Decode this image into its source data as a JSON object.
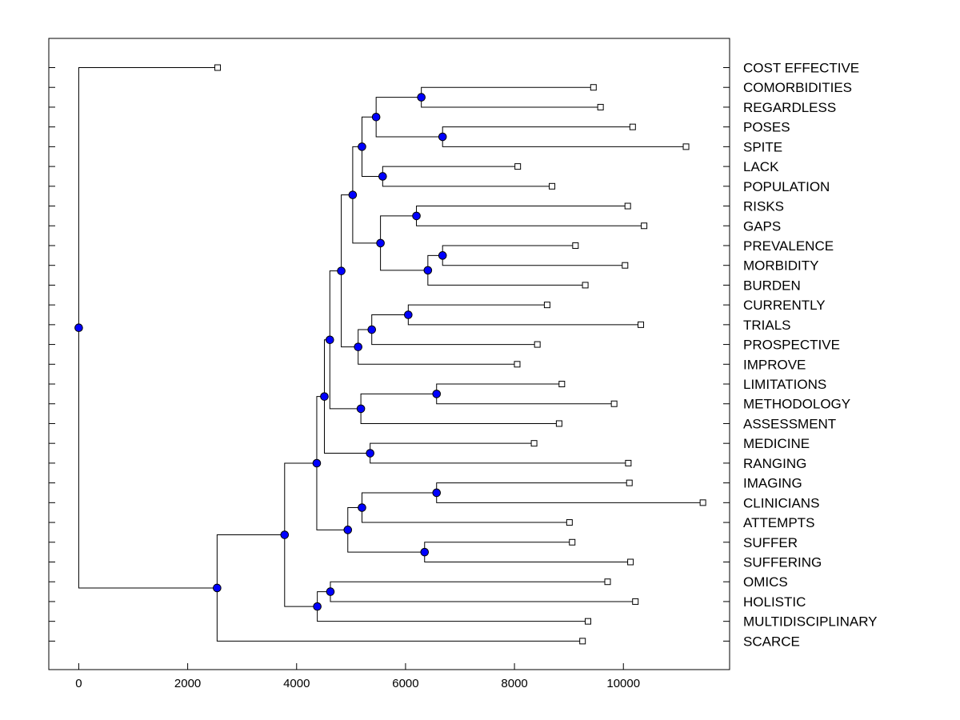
{
  "chart_data": {
    "type": "dendrogram",
    "title": "",
    "xlabel": "",
    "ylabel": "",
    "xlim": [
      -550,
      11950
    ],
    "x_ticks": [
      0,
      2000,
      4000,
      6000,
      8000,
      10000
    ],
    "grid": false,
    "node_color": "#0000ff",
    "leaves": [
      {
        "label": "COST EFFECTIVE",
        "value": 2550
      },
      {
        "label": "COMORBIDITIES",
        "value": 9450
      },
      {
        "label": "REGARDLESS",
        "value": 9580
      },
      {
        "label": "POSES",
        "value": 10170
      },
      {
        "label": "SPITE",
        "value": 11150
      },
      {
        "label": "LACK",
        "value": 8060
      },
      {
        "label": "POPULATION",
        "value": 8690
      },
      {
        "label": "RISKS",
        "value": 10080
      },
      {
        "label": "GAPS",
        "value": 10380
      },
      {
        "label": "PREVALENCE",
        "value": 9120
      },
      {
        "label": "MORBIDITY",
        "value": 10030
      },
      {
        "label": "BURDEN",
        "value": 9300
      },
      {
        "label": "CURRENTLY",
        "value": 8600
      },
      {
        "label": "TRIALS",
        "value": 10320
      },
      {
        "label": "PROSPECTIVE",
        "value": 8420
      },
      {
        "label": "IMPROVE",
        "value": 8050
      },
      {
        "label": "LIMITATIONS",
        "value": 8870
      },
      {
        "label": "METHODOLOGY",
        "value": 9830
      },
      {
        "label": "ASSESSMENT",
        "value": 8820
      },
      {
        "label": "MEDICINE",
        "value": 8360
      },
      {
        "label": "RANGING",
        "value": 10090
      },
      {
        "label": "IMAGING",
        "value": 10110
      },
      {
        "label": "CLINICIANS",
        "value": 11460
      },
      {
        "label": "ATTEMPTS",
        "value": 9010
      },
      {
        "label": "SUFFER",
        "value": 9060
      },
      {
        "label": "SUFFERING",
        "value": 10130
      },
      {
        "label": "OMICS",
        "value": 9710
      },
      {
        "label": "HOLISTIC",
        "value": 10220
      },
      {
        "label": "MULTIDISCIPLINARY",
        "value": 9350
      },
      {
        "label": "SCARCE",
        "value": 9250
      }
    ],
    "merges": [
      {
        "id": "n1",
        "value": 6290,
        "children": [
          1,
          2
        ]
      },
      {
        "id": "n2",
        "value": 6680,
        "children": [
          3,
          4
        ]
      },
      {
        "id": "n3",
        "value": 5460,
        "children": [
          "n1",
          "n2"
        ]
      },
      {
        "id": "n4",
        "value": 5580,
        "children": [
          5,
          6
        ]
      },
      {
        "id": "n5",
        "value": 5200,
        "children": [
          "n3",
          "n4"
        ]
      },
      {
        "id": "n6",
        "value": 6200,
        "children": [
          7,
          8
        ]
      },
      {
        "id": "n7",
        "value": 6680,
        "children": [
          9,
          10
        ]
      },
      {
        "id": "n8",
        "value": 6410,
        "children": [
          "n7",
          11
        ]
      },
      {
        "id": "n9",
        "value": 5540,
        "children": [
          "n6",
          "n8"
        ]
      },
      {
        "id": "n10",
        "value": 5030,
        "children": [
          "n5",
          "n9"
        ]
      },
      {
        "id": "n11",
        "value": 6050,
        "children": [
          12,
          13
        ]
      },
      {
        "id": "n12",
        "value": 5380,
        "children": [
          "n11",
          14
        ]
      },
      {
        "id": "n13",
        "value": 5130,
        "children": [
          "n12",
          15
        ]
      },
      {
        "id": "n14",
        "value": 4820,
        "children": [
          "n10",
          "n13"
        ]
      },
      {
        "id": "n15",
        "value": 6570,
        "children": [
          16,
          17
        ]
      },
      {
        "id": "n16",
        "value": 5180,
        "children": [
          "n15",
          18
        ]
      },
      {
        "id": "n17",
        "value": 4610,
        "children": [
          "n14",
          "n16"
        ]
      },
      {
        "id": "n18",
        "value": 5350,
        "children": [
          19,
          20
        ]
      },
      {
        "id": "n19",
        "value": 4510,
        "children": [
          "n17",
          "n18"
        ]
      },
      {
        "id": "n20",
        "value": 6570,
        "children": [
          21,
          22
        ]
      },
      {
        "id": "n21",
        "value": 5200,
        "children": [
          "n20",
          23
        ]
      },
      {
        "id": "n22",
        "value": 6350,
        "children": [
          24,
          25
        ]
      },
      {
        "id": "n23",
        "value": 4940,
        "children": [
          "n21",
          "n22"
        ]
      },
      {
        "id": "n24",
        "value": 4370,
        "children": [
          "n19",
          "n23"
        ]
      },
      {
        "id": "n25",
        "value": 4620,
        "children": [
          26,
          27
        ]
      },
      {
        "id": "n26",
        "value": 4380,
        "children": [
          "n25",
          28
        ]
      },
      {
        "id": "n27",
        "value": 3780,
        "children": [
          "n24",
          "n26"
        ]
      },
      {
        "id": "n28",
        "value": 2540,
        "children": [
          "n27",
          29
        ]
      },
      {
        "id": "n29",
        "value": 0,
        "children": [
          0,
          "n28"
        ]
      }
    ]
  }
}
